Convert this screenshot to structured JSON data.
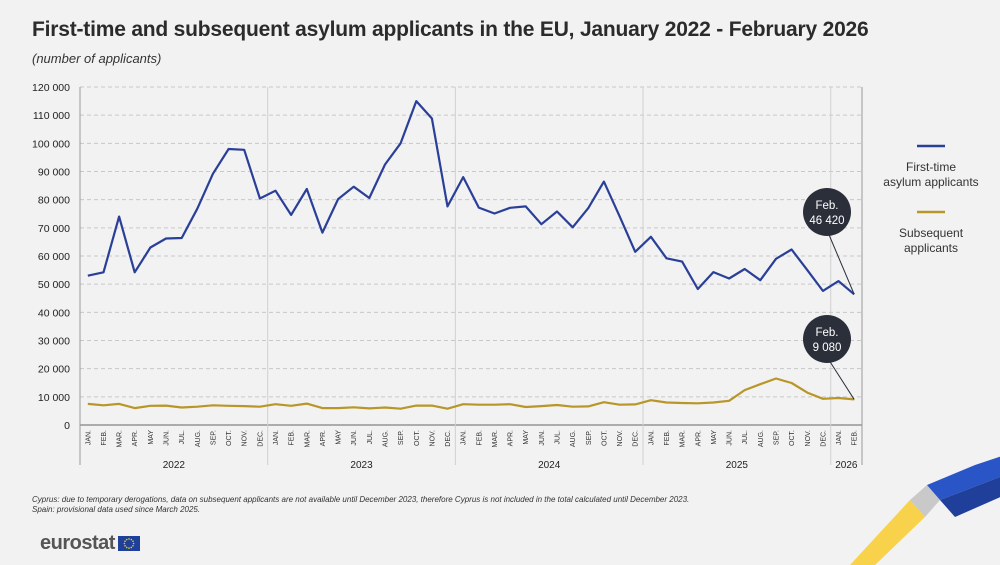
{
  "title": "First-time and subsequent asylum applicants in the EU, January 2022 - February 2026",
  "subtitle": "(number of applicants)",
  "footnotes": [
    "Cyprus: due to temporary derogations, data on subsequent applicants are not available until December 2023, therefore Cyprus is not included in the total calculated until December 2023.",
    "Spain: provisional data used since March 2025."
  ],
  "logo": "eurostat",
  "colors": {
    "first_time": "#2a3f97",
    "subsequent": "#b89628",
    "callout": "#2a2f3a",
    "background": "#f2f2f2"
  },
  "legend": [
    {
      "label_line1": "First-time",
      "label_line2": "asylum applicants"
    },
    {
      "label_line1": "Subsequent",
      "label_line2": "applicants"
    }
  ],
  "callouts": [
    {
      "line1": "Feb.",
      "line2": "46 420"
    },
    {
      "line1": "Feb.",
      "line2": "9 080"
    }
  ],
  "chart_data": {
    "type": "line",
    "title": "First-time and subsequent asylum applicants in the EU, January 2022 - February 2026",
    "ylabel": "",
    "ylim": [
      0,
      120000
    ],
    "yticks": [
      0,
      10000,
      20000,
      30000,
      40000,
      50000,
      60000,
      70000,
      80000,
      90000,
      100000,
      110000,
      120000
    ],
    "ytick_labels": [
      "0",
      "10 000",
      "20 000",
      "30 000",
      "40 000",
      "50 000",
      "60 000",
      "70 000",
      "80 000",
      "90 000",
      "100 000",
      "110 000",
      "120 000"
    ],
    "grid": true,
    "legend_position": "right",
    "years": [
      {
        "label": "2022",
        "months": 12
      },
      {
        "label": "2023",
        "months": 12
      },
      {
        "label": "2024",
        "months": 12
      },
      {
        "label": "2025",
        "months": 12
      },
      {
        "label": "2026",
        "months": 2
      }
    ],
    "month_labels": [
      "JAN.",
      "FEB.",
      "MAR.",
      "APR.",
      "MAY",
      "JUN.",
      "JUL.",
      "AUG.",
      "SEP.",
      "OCT.",
      "NOV.",
      "DEC."
    ],
    "x": [
      "2022-01",
      "2022-02",
      "2022-03",
      "2022-04",
      "2022-05",
      "2022-06",
      "2022-07",
      "2022-08",
      "2022-09",
      "2022-10",
      "2022-11",
      "2022-12",
      "2023-01",
      "2023-02",
      "2023-03",
      "2023-04",
      "2023-05",
      "2023-06",
      "2023-07",
      "2023-08",
      "2023-09",
      "2023-10",
      "2023-11",
      "2023-12",
      "2024-01",
      "2024-02",
      "2024-03",
      "2024-04",
      "2024-05",
      "2024-06",
      "2024-07",
      "2024-08",
      "2024-09",
      "2024-10",
      "2024-11",
      "2024-12",
      "2025-01",
      "2025-02",
      "2025-03",
      "2025-04",
      "2025-05",
      "2025-06",
      "2025-07",
      "2025-08",
      "2025-09",
      "2025-10",
      "2025-11",
      "2025-12",
      "2026-01",
      "2026-02"
    ],
    "series": [
      {
        "name": "First-time asylum applicants",
        "values": [
          53000,
          54200,
          74000,
          54200,
          63000,
          66200,
          66400,
          76800,
          89200,
          98000,
          97700,
          80400,
          83200,
          74600,
          83800,
          68300,
          80200,
          84600,
          80600,
          92500,
          100000,
          115000,
          108800,
          77600,
          88000,
          77200,
          75100,
          77100,
          77600,
          71300,
          75800,
          70200,
          77000,
          86400,
          74100,
          61500,
          66800,
          59200,
          58000,
          48300,
          54300,
          52000,
          55400,
          51400,
          59000,
          62300,
          55000,
          47600,
          51100,
          46420
        ]
      },
      {
        "name": "Subsequent applicants",
        "values": [
          7500,
          7000,
          7500,
          6000,
          6800,
          6900,
          6200,
          6500,
          7000,
          6800,
          6700,
          6500,
          7400,
          6800,
          7600,
          6000,
          6000,
          6300,
          5900,
          6200,
          5800,
          6900,
          6900,
          5800,
          7400,
          7200,
          7200,
          7400,
          6400,
          6700,
          7100,
          6500,
          6600,
          8100,
          7200,
          7300,
          8800,
          8000,
          7800,
          7700,
          8000,
          8600,
          12400,
          14500,
          16500,
          14900,
          11500,
          9300,
          9600,
          9080
        ]
      }
    ]
  }
}
